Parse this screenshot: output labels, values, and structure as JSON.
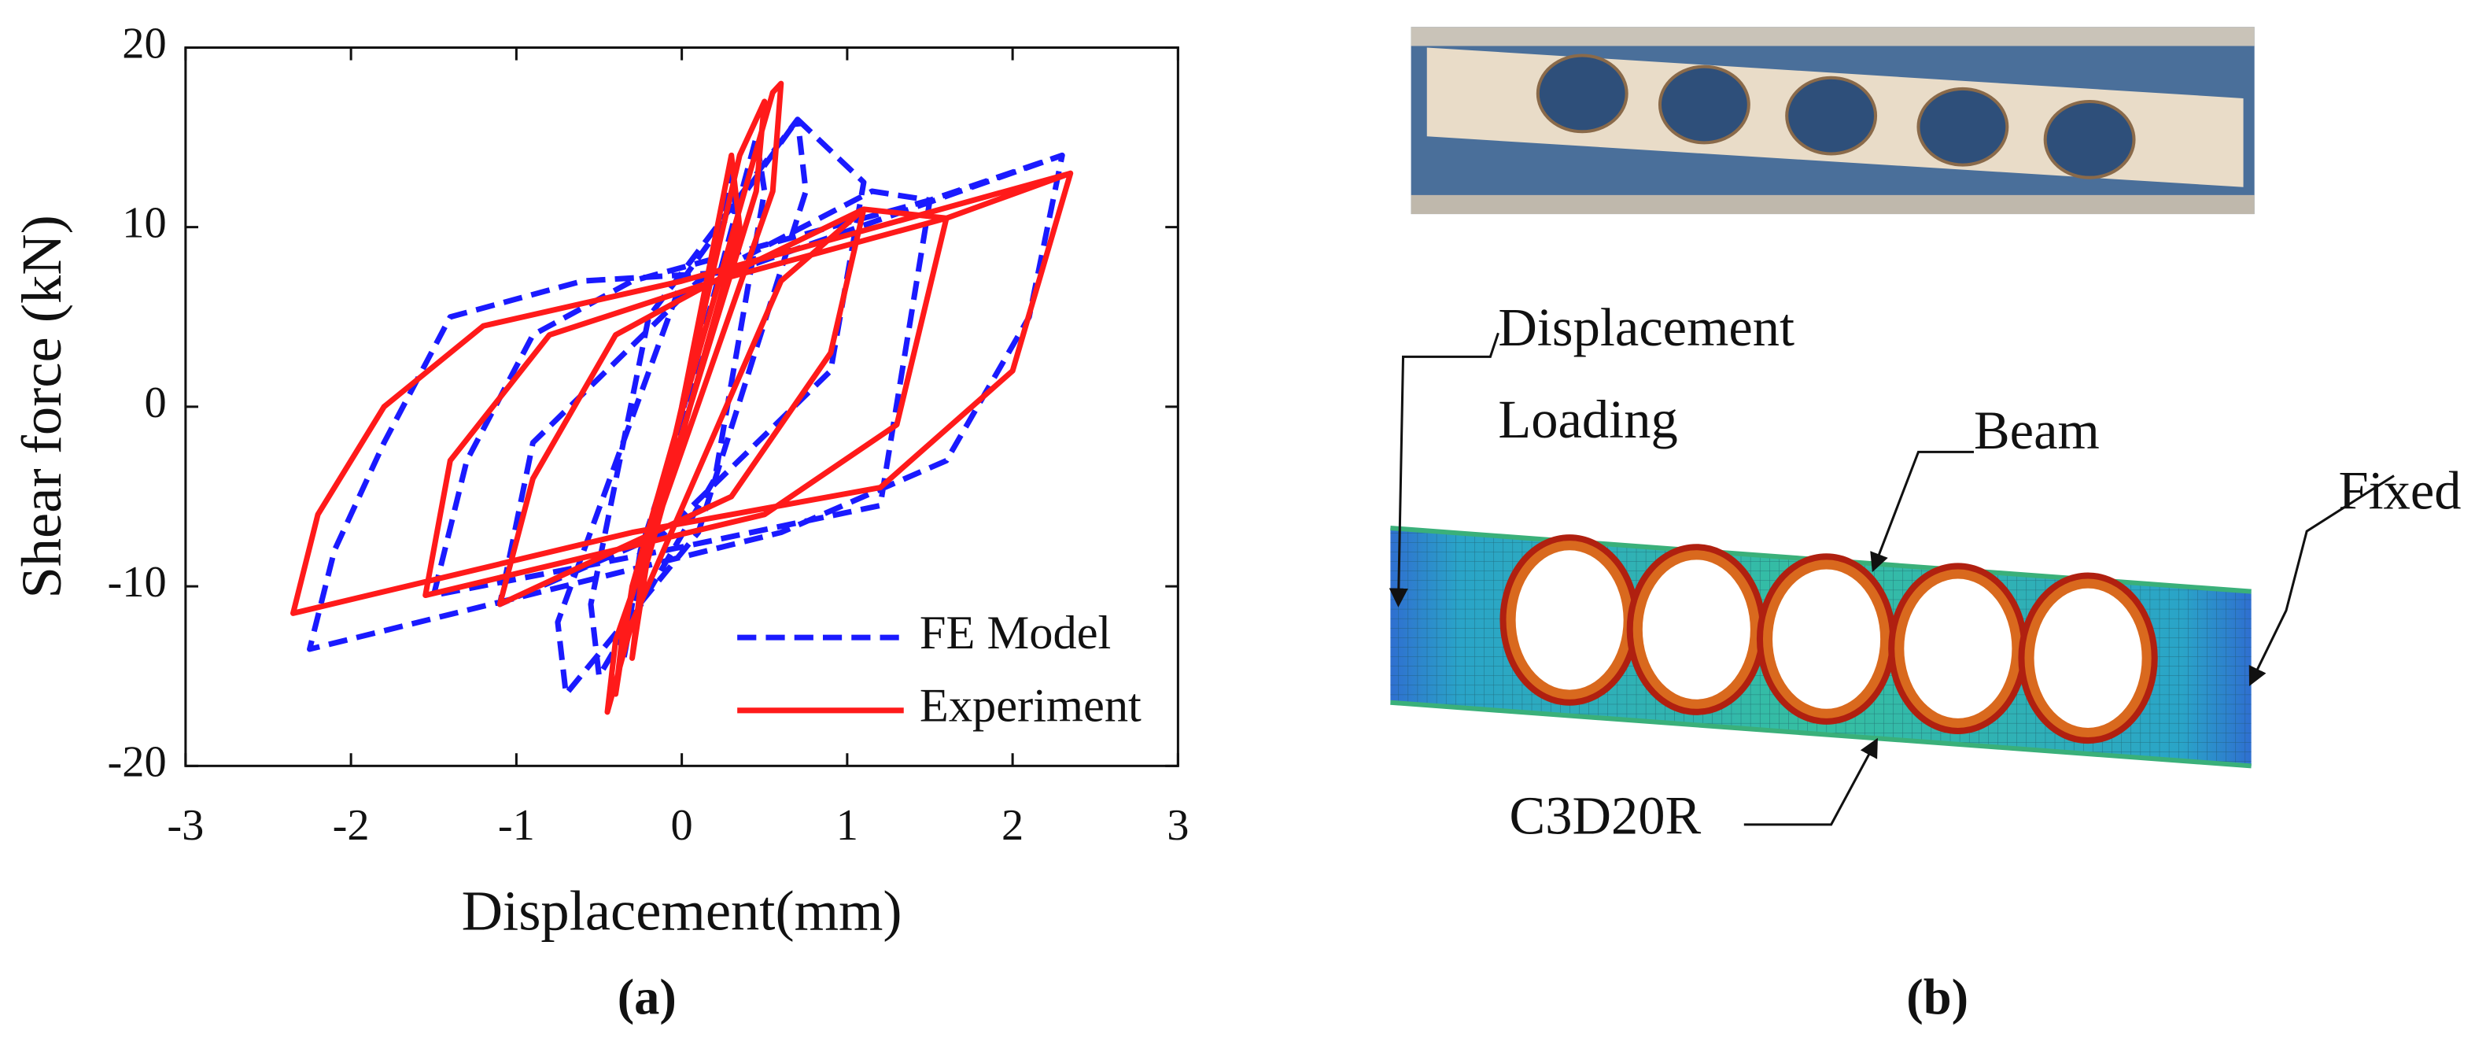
{
  "chart_data": {
    "type": "line",
    "xlabel": "Displacement(mm)",
    "ylabel": "Shear force (kN)",
    "caption": "(a)",
    "xlim": [
      -3,
      3
    ],
    "ylim": [
      -20,
      20
    ],
    "xticks": [
      -3,
      -2,
      -1,
      0,
      1,
      2,
      3
    ],
    "yticks": [
      -20,
      -10,
      0,
      10,
      20
    ],
    "legend": "lower right",
    "series": [
      {
        "name": "FE Model",
        "color": "#1a1aff",
        "dashed": true,
        "x": [
          0,
          0.3,
          0.35,
          -0.25,
          -0.35,
          -0.25,
          0.45,
          0.5,
          0.2,
          -0.5,
          -0.55,
          -0.2,
          0.7,
          0.75,
          0.1,
          -0.7,
          -0.75,
          0,
          0.7,
          1.1,
          0.9,
          -0.1,
          -1.1,
          -0.9,
          0.1,
          1.15,
          1.5,
          1.2,
          -0.1,
          -1.5,
          -1.3,
          -0.9,
          -0.3,
          1.5,
          2.3,
          2.1,
          1.6,
          0.6,
          -2.25,
          -2.1,
          -1.8,
          -1.4,
          -0.6,
          0.3,
          2.3
        ],
        "values": [
          0,
          13,
          9,
          -8,
          -14,
          -9,
          15,
          12,
          -4,
          -15,
          -11,
          5,
          16,
          12,
          -7,
          -16,
          -12,
          7,
          16,
          12.5,
          2,
          -7,
          -11,
          -2,
          7,
          12,
          11.5,
          -5.5,
          -8,
          -10.5,
          -3,
          4,
          7,
          11.5,
          14,
          5,
          -3,
          -7,
          -13.5,
          -8,
          -2,
          5,
          7,
          7.5,
          14
        ]
      },
      {
        "name": "Experiment",
        "color": "#ff1a1a",
        "dashed": false,
        "x": [
          0,
          0.3,
          0.35,
          -0.25,
          -0.3,
          -0.2,
          0.35,
          0.5,
          0.45,
          -0.35,
          -0.4,
          -0.3,
          0.55,
          0.6,
          0.55,
          -0.4,
          -0.45,
          -0.3,
          0.6,
          1.1,
          0.9,
          0.3,
          -1.1,
          -0.9,
          -0.4,
          0.2,
          1.1,
          1.6,
          1.3,
          0.5,
          -1.55,
          -1.4,
          -0.8,
          0.2,
          1.6,
          2.35,
          2.0,
          1.2,
          -0.3,
          -2.35,
          -2.2,
          -1.8,
          -1.2,
          0,
          2.35
        ],
        "values": [
          0,
          14,
          10,
          -10,
          -14,
          -8,
          14,
          17,
          12,
          -12,
          -16,
          -10,
          17.5,
          18,
          12,
          -13,
          -17,
          -12,
          7,
          11,
          3,
          -5,
          -11,
          -4,
          4,
          7,
          11,
          10.5,
          -1,
          -6,
          -10.5,
          -3,
          4,
          7,
          10.5,
          13,
          2,
          -4.5,
          -7,
          -11.5,
          -6,
          0,
          4.5,
          7,
          13
        ]
      }
    ]
  },
  "diagram": {
    "caption": "(b)",
    "labels": [
      "Displacement",
      "Loading",
      "Beam",
      "Fixed",
      "C3D20R"
    ]
  }
}
